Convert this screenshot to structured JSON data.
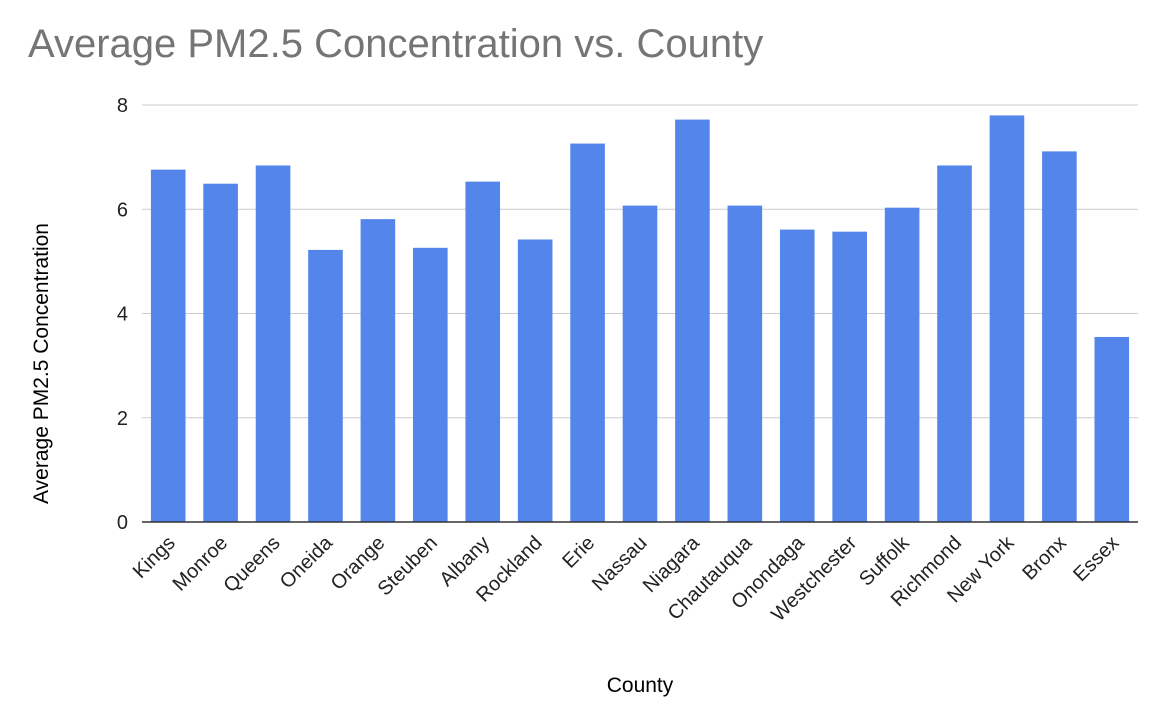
{
  "chart_data": {
    "type": "bar",
    "title": "Average PM2.5 Concentration vs. County",
    "xlabel": "County",
    "ylabel": "Average PM2.5 Concentration",
    "ylim": [
      0,
      8
    ],
    "yticks": [
      0,
      2,
      4,
      6,
      8
    ],
    "grid": true,
    "legend": "none",
    "bar_color": "#5385EB",
    "categories": [
      "Kings",
      "Monroe",
      "Queens",
      "Oneida",
      "Orange",
      "Steuben",
      "Albany",
      "Rockland",
      "Erie",
      "Nassau",
      "Niagara",
      "Chautauqua",
      "Onondaga",
      "Westchester",
      "Suffolk",
      "Richmond",
      "New York",
      "Bronx",
      "Essex"
    ],
    "values": [
      6.76,
      6.49,
      6.84,
      5.22,
      5.81,
      5.26,
      6.53,
      5.42,
      7.26,
      6.07,
      7.72,
      6.07,
      5.61,
      5.57,
      6.03,
      6.84,
      7.8,
      7.11,
      3.55
    ]
  }
}
